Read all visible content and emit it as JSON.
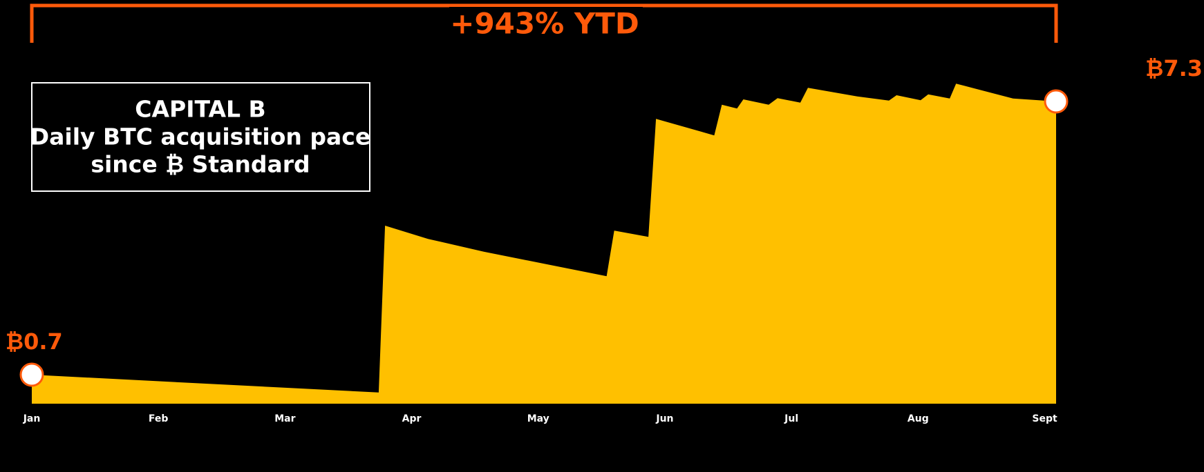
{
  "chart_data": {
    "type": "area",
    "title": "+943% YTD",
    "subtitle_lines": [
      "CAPITAL B",
      "Daily BTC acquisition pace",
      "since ₿ Standard"
    ],
    "x": [
      0,
      2.74,
      2.79,
      3.13,
      3.57,
      4.54,
      4.6,
      4.87,
      4.93,
      5.39,
      5.45,
      5.57,
      5.62,
      5.82,
      5.89,
      6.07,
      6.13,
      6.52,
      6.77,
      6.83,
      7.02,
      7.08,
      7.25,
      7.3,
      7.75,
      8.09
    ],
    "values": [
      0.7,
      0.27,
      4.3,
      3.98,
      3.67,
      3.08,
      4.18,
      4.03,
      6.88,
      6.48,
      7.22,
      7.13,
      7.35,
      7.22,
      7.38,
      7.27,
      7.63,
      7.42,
      7.32,
      7.45,
      7.33,
      7.47,
      7.37,
      7.73,
      7.37,
      7.3
    ],
    "value_labels": [
      "₿0.7",
      null,
      null,
      null,
      null,
      null,
      null,
      null,
      null,
      null,
      null,
      null,
      null,
      null,
      null,
      null,
      null,
      null,
      null,
      null,
      null,
      null,
      null,
      null,
      null,
      "₿7.3"
    ],
    "color": "#FFC000",
    "accent_color": "#FF5A0A",
    "xlim": [
      0,
      8.09
    ],
    "ylim": [
      0,
      9.75
    ],
    "xticks": [
      {
        "value": 0,
        "label": "Jan"
      },
      {
        "value": 1,
        "label": "Feb"
      },
      {
        "value": 2,
        "label": "Mar"
      },
      {
        "value": 3,
        "label": "Apr"
      },
      {
        "value": 4,
        "label": "May"
      },
      {
        "value": 5,
        "label": "Jun"
      },
      {
        "value": 6,
        "label": "Jul"
      },
      {
        "value": 7,
        "label": "Aug"
      },
      {
        "value": 8,
        "label": "Sept"
      }
    ]
  }
}
